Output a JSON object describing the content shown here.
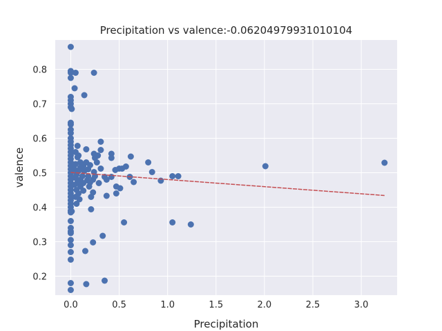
{
  "chart_data": {
    "type": "scatter",
    "title": "Precipitation vs valence:-0.06204979931010104",
    "xlabel": "Precipitation",
    "ylabel": "valence",
    "xlim": [
      -0.16,
      3.37
    ],
    "ylim": [
      0.145,
      0.885
    ],
    "x_ticks": [
      0.0,
      0.5,
      1.0,
      1.5,
      2.0,
      2.5,
      3.0
    ],
    "x_tick_labels": [
      "0.0",
      "0.5",
      "1.0",
      "1.5",
      "2.0",
      "2.5",
      "3.0"
    ],
    "y_ticks": [
      0.2,
      0.3,
      0.4,
      0.5,
      0.6,
      0.7,
      0.8
    ],
    "y_tick_labels": [
      "0.2",
      "0.3",
      "0.4",
      "0.5",
      "0.6",
      "0.7",
      "0.8"
    ],
    "grid": true,
    "background_color": "#EAEAF2",
    "point_color": "#4C72B0",
    "trendline_color": "#C44E52",
    "series": [
      {
        "values": [
          [
            0.0,
            0.865
          ],
          [
            0.0,
            0.795
          ],
          [
            0.0,
            0.79
          ],
          [
            0.05,
            0.79
          ],
          [
            0.24,
            0.79
          ],
          [
            0.0,
            0.775
          ],
          [
            0.04,
            0.745
          ],
          [
            0.14,
            0.725
          ],
          [
            0.0,
            0.72
          ],
          [
            0.0,
            0.71
          ],
          [
            0.0,
            0.7
          ],
          [
            0.0,
            0.69
          ],
          [
            0.01,
            0.685
          ],
          [
            0.0,
            0.645
          ],
          [
            0.0,
            0.64
          ],
          [
            0.0,
            0.625
          ],
          [
            0.0,
            0.615
          ],
          [
            0.0,
            0.6
          ],
          [
            0.0,
            0.59
          ],
          [
            0.31,
            0.59
          ],
          [
            0.0,
            0.58
          ],
          [
            0.07,
            0.578
          ],
          [
            0.0,
            0.57
          ],
          [
            0.16,
            0.568
          ],
          [
            0.31,
            0.566
          ],
          [
            0.0,
            0.56
          ],
          [
            0.05,
            0.56
          ],
          [
            0.24,
            0.555
          ],
          [
            0.42,
            0.555
          ],
          [
            0.0,
            0.55
          ],
          [
            0.08,
            0.55
          ],
          [
            0.28,
            0.55
          ],
          [
            0.62,
            0.547
          ],
          [
            0.0,
            0.54
          ],
          [
            0.07,
            0.545
          ],
          [
            0.25,
            0.543
          ],
          [
            0.42,
            0.543
          ],
          [
            0.0,
            0.53
          ],
          [
            0.1,
            0.53
          ],
          [
            0.16,
            0.53
          ],
          [
            0.27,
            0.53
          ],
          [
            0.8,
            0.53
          ],
          [
            0.0,
            0.52
          ],
          [
            0.05,
            0.525
          ],
          [
            0.13,
            0.52
          ],
          [
            0.2,
            0.522
          ],
          [
            0.57,
            0.518
          ],
          [
            0.0,
            0.51
          ],
          [
            0.04,
            0.51
          ],
          [
            0.1,
            0.515
          ],
          [
            0.18,
            0.51
          ],
          [
            0.31,
            0.512
          ],
          [
            0.5,
            0.512
          ],
          [
            0.53,
            0.512
          ],
          [
            0.0,
            0.5
          ],
          [
            0.08,
            0.505
          ],
          [
            0.14,
            0.505
          ],
          [
            0.24,
            0.502
          ],
          [
            0.46,
            0.508
          ],
          [
            0.84,
            0.502
          ],
          [
            0.0,
            0.49
          ],
          [
            0.06,
            0.495
          ],
          [
            0.12,
            0.49
          ],
          [
            0.18,
            0.49
          ],
          [
            0.25,
            0.49
          ],
          [
            0.35,
            0.488
          ],
          [
            0.42,
            0.488
          ],
          [
            0.61,
            0.488
          ],
          [
            1.05,
            0.49
          ],
          [
            1.11,
            0.49
          ],
          [
            0.0,
            0.48
          ],
          [
            0.05,
            0.485
          ],
          [
            0.1,
            0.48
          ],
          [
            0.17,
            0.478
          ],
          [
            0.23,
            0.48
          ],
          [
            0.37,
            0.48
          ],
          [
            0.65,
            0.473
          ],
          [
            0.93,
            0.477
          ],
          [
            0.0,
            0.47
          ],
          [
            0.07,
            0.472
          ],
          [
            0.13,
            0.47
          ],
          [
            0.2,
            0.472
          ],
          [
            0.29,
            0.47
          ],
          [
            0.0,
            0.46
          ],
          [
            0.04,
            0.465
          ],
          [
            0.1,
            0.46
          ],
          [
            0.19,
            0.46
          ],
          [
            0.47,
            0.46
          ],
          [
            0.51,
            0.455
          ],
          [
            0.0,
            0.45
          ],
          [
            0.06,
            0.45
          ],
          [
            0.13,
            0.448
          ],
          [
            0.23,
            0.443
          ],
          [
            0.47,
            0.44
          ],
          [
            0.0,
            0.44
          ],
          [
            0.08,
            0.44
          ],
          [
            0.37,
            0.433
          ],
          [
            0.0,
            0.43
          ],
          [
            0.05,
            0.43
          ],
          [
            0.21,
            0.43
          ],
          [
            0.0,
            0.42
          ],
          [
            0.09,
            0.423
          ],
          [
            0.0,
            0.41
          ],
          [
            0.06,
            0.41
          ],
          [
            0.0,
            0.4
          ],
          [
            0.0,
            0.39
          ],
          [
            0.01,
            0.388
          ],
          [
            0.21,
            0.394
          ],
          [
            0.0,
            0.385
          ],
          [
            0.0,
            0.36
          ],
          [
            0.55,
            0.356
          ],
          [
            1.05,
            0.356
          ],
          [
            1.24,
            0.35
          ],
          [
            0.0,
            0.34
          ],
          [
            0.0,
            0.33
          ],
          [
            0.0,
            0.325
          ],
          [
            0.33,
            0.317
          ],
          [
            0.0,
            0.305
          ],
          [
            0.23,
            0.298
          ],
          [
            0.0,
            0.29
          ],
          [
            0.0,
            0.27
          ],
          [
            0.15,
            0.273
          ],
          [
            0.0,
            0.248
          ],
          [
            0.35,
            0.187
          ],
          [
            0.0,
            0.18
          ],
          [
            0.16,
            0.177
          ],
          [
            0.0,
            0.16
          ],
          [
            2.01,
            0.519
          ],
          [
            3.24,
            0.529
          ]
        ]
      }
    ],
    "trendline": {
      "x": [
        0.0,
        3.24
      ],
      "y": [
        0.501,
        0.434
      ],
      "style": "dashed"
    }
  }
}
